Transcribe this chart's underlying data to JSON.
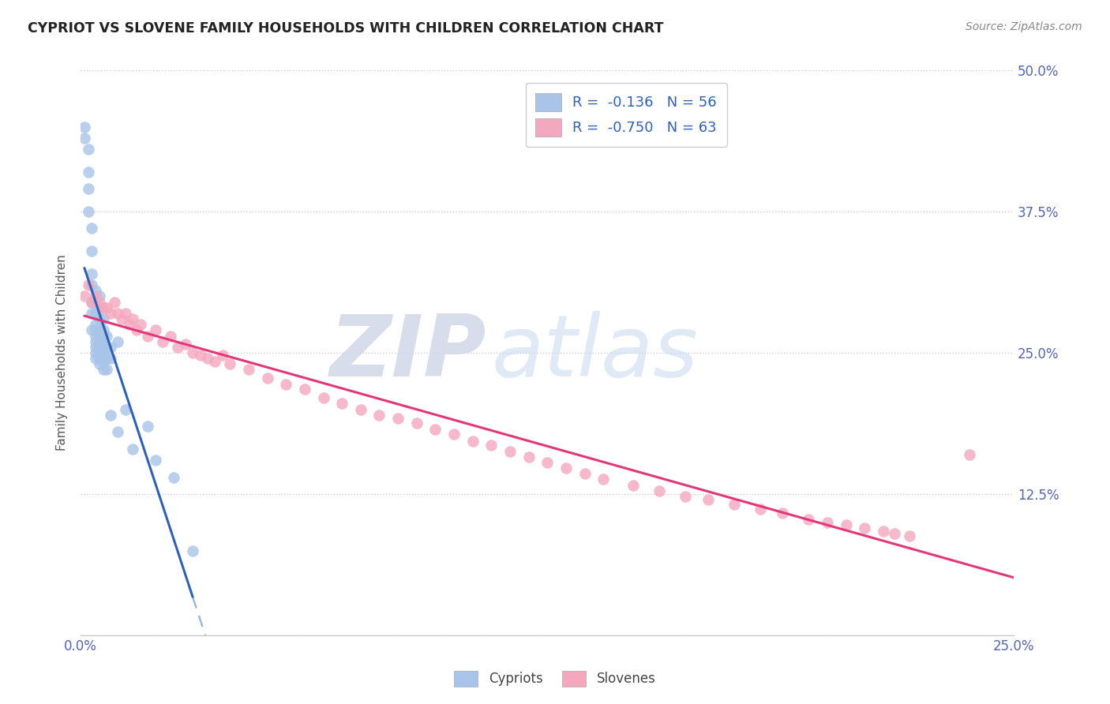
{
  "title": "CYPRIOT VS SLOVENE FAMILY HOUSEHOLDS WITH CHILDREN CORRELATION CHART",
  "source": "Source: ZipAtlas.com",
  "ylabel": "Family Households with Children",
  "xlim": [
    0.0,
    0.25
  ],
  "ylim": [
    0.0,
    0.5
  ],
  "xticks": [
    0.0,
    0.05,
    0.1,
    0.15,
    0.2,
    0.25
  ],
  "yticks": [
    0.0,
    0.125,
    0.25,
    0.375,
    0.5
  ],
  "cypriot_color": "#a8c4e8",
  "slovene_color": "#f4a8be",
  "cypriot_line_color": "#3060b0",
  "slovene_line_color": "#e03878",
  "dashed_line_color": "#a0b8d8",
  "cypriot_R": -0.136,
  "cypriot_N": 56,
  "slovene_R": -0.75,
  "slovene_N": 63,
  "watermark_zip": "ZIP",
  "watermark_atlas": "atlas",
  "cypriot_x": [
    0.001,
    0.001,
    0.002,
    0.002,
    0.002,
    0.002,
    0.003,
    0.003,
    0.003,
    0.003,
    0.003,
    0.003,
    0.003,
    0.004,
    0.004,
    0.004,
    0.004,
    0.004,
    0.004,
    0.004,
    0.004,
    0.004,
    0.004,
    0.005,
    0.005,
    0.005,
    0.005,
    0.005,
    0.005,
    0.005,
    0.005,
    0.005,
    0.005,
    0.006,
    0.006,
    0.006,
    0.006,
    0.006,
    0.006,
    0.006,
    0.006,
    0.007,
    0.007,
    0.007,
    0.007,
    0.008,
    0.008,
    0.008,
    0.01,
    0.01,
    0.012,
    0.014,
    0.018,
    0.02,
    0.025,
    0.03
  ],
  "cypriot_y": [
    0.45,
    0.44,
    0.43,
    0.41,
    0.395,
    0.375,
    0.36,
    0.34,
    0.32,
    0.31,
    0.295,
    0.285,
    0.27,
    0.305,
    0.295,
    0.285,
    0.275,
    0.27,
    0.265,
    0.26,
    0.255,
    0.25,
    0.245,
    0.3,
    0.29,
    0.28,
    0.27,
    0.265,
    0.26,
    0.255,
    0.25,
    0.245,
    0.24,
    0.28,
    0.27,
    0.265,
    0.26,
    0.255,
    0.248,
    0.242,
    0.235,
    0.265,
    0.255,
    0.245,
    0.235,
    0.255,
    0.245,
    0.195,
    0.26,
    0.18,
    0.2,
    0.165,
    0.185,
    0.155,
    0.14,
    0.075
  ],
  "slovene_x": [
    0.001,
    0.002,
    0.003,
    0.004,
    0.005,
    0.006,
    0.007,
    0.008,
    0.009,
    0.01,
    0.011,
    0.012,
    0.013,
    0.014,
    0.015,
    0.016,
    0.018,
    0.02,
    0.022,
    0.024,
    0.026,
    0.028,
    0.03,
    0.032,
    0.034,
    0.036,
    0.038,
    0.04,
    0.045,
    0.05,
    0.055,
    0.06,
    0.065,
    0.07,
    0.075,
    0.08,
    0.085,
    0.09,
    0.095,
    0.1,
    0.105,
    0.11,
    0.115,
    0.12,
    0.125,
    0.13,
    0.135,
    0.14,
    0.148,
    0.155,
    0.162,
    0.168,
    0.175,
    0.182,
    0.188,
    0.195,
    0.2,
    0.205,
    0.21,
    0.215,
    0.218,
    0.222,
    0.238
  ],
  "slovene_y": [
    0.3,
    0.31,
    0.295,
    0.3,
    0.295,
    0.29,
    0.29,
    0.285,
    0.295,
    0.285,
    0.28,
    0.285,
    0.275,
    0.28,
    0.27,
    0.275,
    0.265,
    0.27,
    0.26,
    0.265,
    0.255,
    0.258,
    0.25,
    0.248,
    0.245,
    0.242,
    0.248,
    0.24,
    0.235,
    0.228,
    0.222,
    0.218,
    0.21,
    0.205,
    0.2,
    0.195,
    0.192,
    0.188,
    0.182,
    0.178,
    0.172,
    0.168,
    0.163,
    0.158,
    0.153,
    0.148,
    0.143,
    0.138,
    0.133,
    0.128,
    0.123,
    0.12,
    0.116,
    0.112,
    0.108,
    0.103,
    0.1,
    0.098,
    0.095,
    0.092,
    0.09,
    0.088,
    0.16
  ]
}
